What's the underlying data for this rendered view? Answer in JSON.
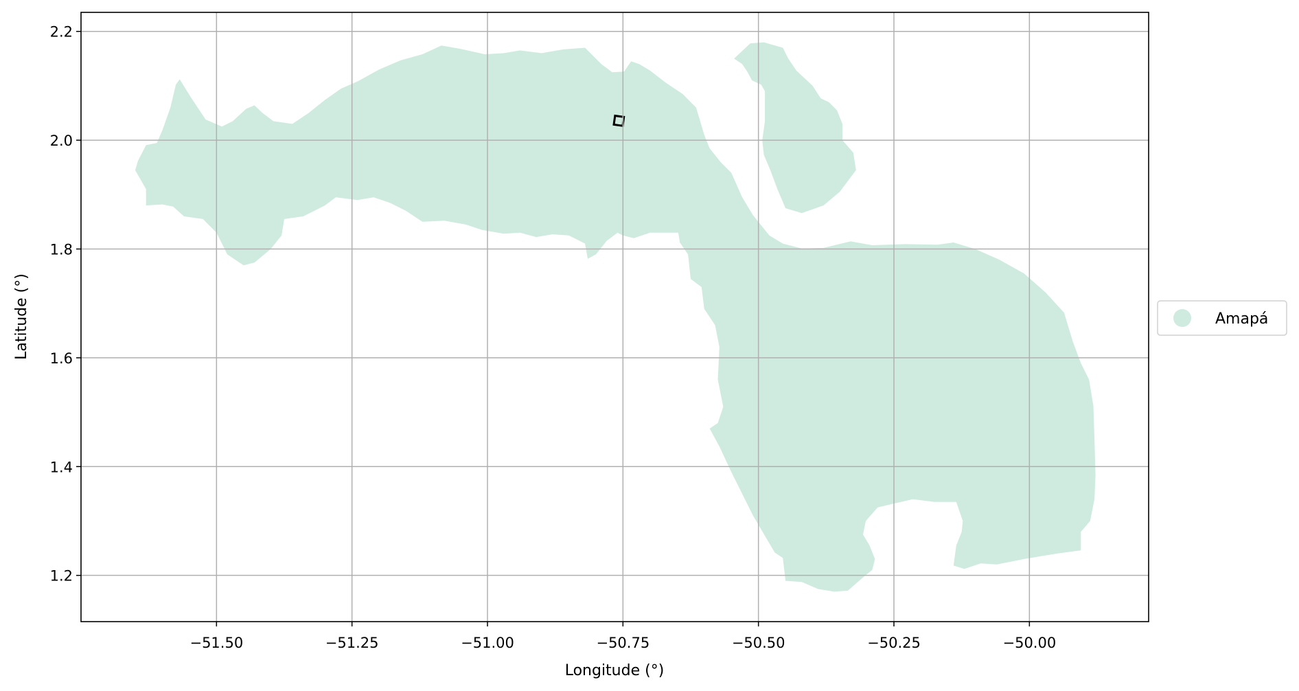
{
  "chart_data": {
    "type": "map",
    "xlabel": "Longitude (°)",
    "ylabel": "Latitude (°)",
    "xlim": [
      -51.75,
      -49.78
    ],
    "ylim": [
      1.115,
      2.235
    ],
    "xticks": [
      -51.5,
      -51.25,
      -51.0,
      -50.75,
      -50.5,
      -50.25,
      -50.0
    ],
    "xtick_labels": [
      "−51.50",
      "−51.25",
      "−51.00",
      "−50.75",
      "−50.50",
      "−50.25",
      "−50.00"
    ],
    "yticks": [
      1.2,
      1.4,
      1.6,
      1.8,
      2.0,
      2.2
    ],
    "ytick_labels": [
      "1.2",
      "1.4",
      "1.6",
      "1.8",
      "2.0",
      "2.2"
    ],
    "grid": true,
    "legend": {
      "placement": "right",
      "entries": [
        {
          "label": "Amapá",
          "color": "#cfebdf"
        }
      ]
    },
    "region": {
      "name": "Amapá",
      "color": "#cfebdf",
      "mainland": [
        [
          -51.645,
          1.962
        ],
        [
          -51.63,
          1.991
        ],
        [
          -51.61,
          1.995
        ],
        [
          -51.6,
          2.018
        ],
        [
          -51.585,
          2.06
        ],
        [
          -51.575,
          2.102
        ],
        [
          -51.568,
          2.112
        ],
        [
          -51.548,
          2.08
        ],
        [
          -51.52,
          2.038
        ],
        [
          -51.49,
          2.025
        ],
        [
          -51.47,
          2.035
        ],
        [
          -51.445,
          2.058
        ],
        [
          -51.43,
          2.064
        ],
        [
          -51.415,
          2.05
        ],
        [
          -51.395,
          2.035
        ],
        [
          -51.36,
          2.03
        ],
        [
          -51.33,
          2.05
        ],
        [
          -51.3,
          2.074
        ],
        [
          -51.27,
          2.095
        ],
        [
          -51.24,
          2.108
        ],
        [
          -51.2,
          2.13
        ],
        [
          -51.16,
          2.147
        ],
        [
          -51.12,
          2.158
        ],
        [
          -51.085,
          2.174
        ],
        [
          -51.05,
          2.168
        ],
        [
          -51.005,
          2.158
        ],
        [
          -50.97,
          2.16
        ],
        [
          -50.94,
          2.165
        ],
        [
          -50.9,
          2.16
        ],
        [
          -50.86,
          2.167
        ],
        [
          -50.82,
          2.17
        ],
        [
          -50.79,
          2.14
        ],
        [
          -50.77,
          2.125
        ],
        [
          -50.748,
          2.126
        ],
        [
          -50.735,
          2.145
        ],
        [
          -50.72,
          2.14
        ],
        [
          -50.7,
          2.128
        ],
        [
          -50.67,
          2.105
        ],
        [
          -50.64,
          2.085
        ],
        [
          -50.615,
          2.06
        ],
        [
          -50.6,
          2.01
        ],
        [
          -50.59,
          1.985
        ],
        [
          -50.57,
          1.96
        ],
        [
          -50.55,
          1.94
        ],
        [
          -50.53,
          1.895
        ],
        [
          -50.51,
          1.862
        ],
        [
          -50.48,
          1.825
        ],
        [
          -50.455,
          1.81
        ],
        [
          -50.42,
          1.801
        ],
        [
          -50.38,
          1.802
        ],
        [
          -50.33,
          1.814
        ],
        [
          -50.29,
          1.807
        ],
        [
          -50.23,
          1.809
        ],
        [
          -50.17,
          1.808
        ],
        [
          -50.14,
          1.812
        ],
        [
          -50.1,
          1.8
        ],
        [
          -50.055,
          1.78
        ],
        [
          -50.01,
          1.755
        ],
        [
          -49.97,
          1.72
        ],
        [
          -49.936,
          1.683
        ],
        [
          -49.92,
          1.63
        ],
        [
          -49.905,
          1.59
        ],
        [
          -49.89,
          1.56
        ],
        [
          -49.882,
          1.512
        ],
        [
          -49.88,
          1.45
        ],
        [
          -49.878,
          1.385
        ],
        [
          -49.88,
          1.34
        ],
        [
          -49.888,
          1.3
        ],
        [
          -49.905,
          1.28
        ],
        [
          -49.905,
          1.246
        ],
        [
          -49.95,
          1.24
        ],
        [
          -50.01,
          1.23
        ],
        [
          -50.06,
          1.22
        ],
        [
          -50.09,
          1.222
        ],
        [
          -50.12,
          1.212
        ],
        [
          -50.14,
          1.218
        ],
        [
          -50.135,
          1.255
        ],
        [
          -50.125,
          1.28
        ],
        [
          -50.123,
          1.3
        ],
        [
          -50.135,
          1.335
        ],
        [
          -50.175,
          1.335
        ],
        [
          -50.215,
          1.34
        ],
        [
          -50.25,
          1.332
        ],
        [
          -50.28,
          1.325
        ],
        [
          -50.302,
          1.3
        ],
        [
          -50.307,
          1.275
        ],
        [
          -50.295,
          1.255
        ],
        [
          -50.285,
          1.23
        ],
        [
          -50.29,
          1.21
        ],
        [
          -50.305,
          1.198
        ],
        [
          -50.335,
          1.172
        ],
        [
          -50.36,
          1.17
        ],
        [
          -50.39,
          1.175
        ],
        [
          -50.42,
          1.188
        ],
        [
          -50.45,
          1.19
        ],
        [
          -50.455,
          1.232
        ],
        [
          -50.47,
          1.242
        ],
        [
          -50.51,
          1.31
        ],
        [
          -50.55,
          1.39
        ],
        [
          -50.572,
          1.437
        ],
        [
          -50.59,
          1.47
        ],
        [
          -50.575,
          1.48
        ],
        [
          -50.565,
          1.51
        ],
        [
          -50.575,
          1.56
        ],
        [
          -50.572,
          1.62
        ],
        [
          -50.58,
          1.66
        ],
        [
          -50.6,
          1.69
        ],
        [
          -50.605,
          1.73
        ],
        [
          -50.625,
          1.745
        ],
        [
          -50.63,
          1.79
        ],
        [
          -50.645,
          1.812
        ],
        [
          -50.648,
          1.83
        ],
        [
          -50.7,
          1.83
        ],
        [
          -50.73,
          1.82
        ],
        [
          -50.75,
          1.825
        ],
        [
          -50.76,
          1.83
        ],
        [
          -50.78,
          1.815
        ],
        [
          -50.8,
          1.79
        ],
        [
          -50.815,
          1.782
        ],
        [
          -50.82,
          1.81
        ],
        [
          -50.85,
          1.825
        ],
        [
          -50.88,
          1.827
        ],
        [
          -50.91,
          1.822
        ],
        [
          -50.94,
          1.83
        ],
        [
          -50.97,
          1.828
        ],
        [
          -51.01,
          1.835
        ],
        [
          -51.04,
          1.845
        ],
        [
          -51.08,
          1.852
        ],
        [
          -51.12,
          1.85
        ],
        [
          -51.15,
          1.87
        ],
        [
          -51.18,
          1.885
        ],
        [
          -51.21,
          1.895
        ],
        [
          -51.24,
          1.89
        ],
        [
          -51.28,
          1.895
        ],
        [
          -51.3,
          1.88
        ],
        [
          -51.34,
          1.86
        ],
        [
          -51.375,
          1.855
        ],
        [
          -51.38,
          1.825
        ],
        [
          -51.4,
          1.8
        ],
        [
          -51.43,
          1.775
        ],
        [
          -51.45,
          1.77
        ],
        [
          -51.48,
          1.79
        ],
        [
          -51.5,
          1.83
        ],
        [
          -51.525,
          1.855
        ],
        [
          -51.56,
          1.86
        ],
        [
          -51.58,
          1.878
        ],
        [
          -51.6,
          1.882
        ],
        [
          -51.63,
          1.88
        ],
        [
          -51.63,
          1.91
        ],
        [
          -51.65,
          1.945
        ]
      ],
      "island": [
        [
          -50.545,
          2.15
        ],
        [
          -50.515,
          2.178
        ],
        [
          -50.49,
          2.18
        ],
        [
          -50.455,
          2.17
        ],
        [
          -50.445,
          2.15
        ],
        [
          -50.43,
          2.128
        ],
        [
          -50.4,
          2.1
        ],
        [
          -50.385,
          2.077
        ],
        [
          -50.37,
          2.07
        ],
        [
          -50.355,
          2.055
        ],
        [
          -50.345,
          2.03
        ],
        [
          -50.345,
          2.0
        ],
        [
          -50.325,
          1.977
        ],
        [
          -50.32,
          1.945
        ],
        [
          -50.35,
          1.905
        ],
        [
          -50.38,
          1.88
        ],
        [
          -50.42,
          1.866
        ],
        [
          -50.45,
          1.875
        ],
        [
          -50.465,
          1.91
        ],
        [
          -50.478,
          1.945
        ],
        [
          -50.49,
          1.973
        ],
        [
          -50.493,
          2.0
        ],
        [
          -50.488,
          2.035
        ],
        [
          -50.488,
          2.09
        ],
        [
          -50.495,
          2.102
        ],
        [
          -50.512,
          2.11
        ],
        [
          -50.52,
          2.125
        ],
        [
          -50.53,
          2.14
        ]
      ],
      "site_marker": {
        "longitude": -50.757,
        "latitude": 2.035
      }
    }
  }
}
